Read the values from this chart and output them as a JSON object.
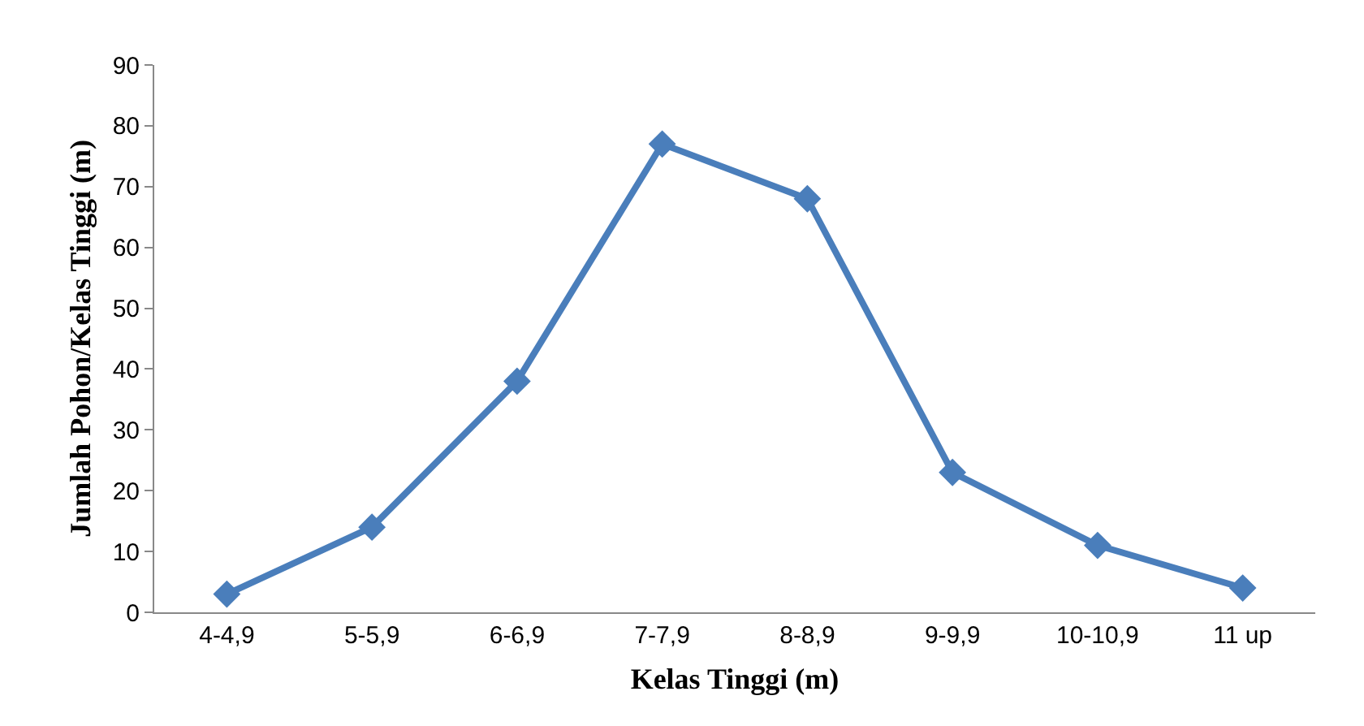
{
  "chart_data": {
    "type": "line",
    "xlabel": "Kelas Tinggi (m)",
    "ylabel": "Jumlah Pohon/Kelas Tinggi (m)",
    "categories": [
      "4-4,9",
      "5-5,9",
      "6-6,9",
      "7-7,9",
      "8-8,9",
      "9-9,9",
      "10-10,9",
      "11 up"
    ],
    "series": [
      {
        "color": "#4a7ebb",
        "values": [
          3,
          14,
          38,
          77,
          68,
          23,
          11,
          4
        ]
      }
    ],
    "ylim": [
      0,
      90
    ],
    "yticks": [
      0,
      10,
      20,
      30,
      40,
      50,
      60,
      70,
      80,
      90
    ],
    "marker": "diamond",
    "line_style": "solid"
  }
}
